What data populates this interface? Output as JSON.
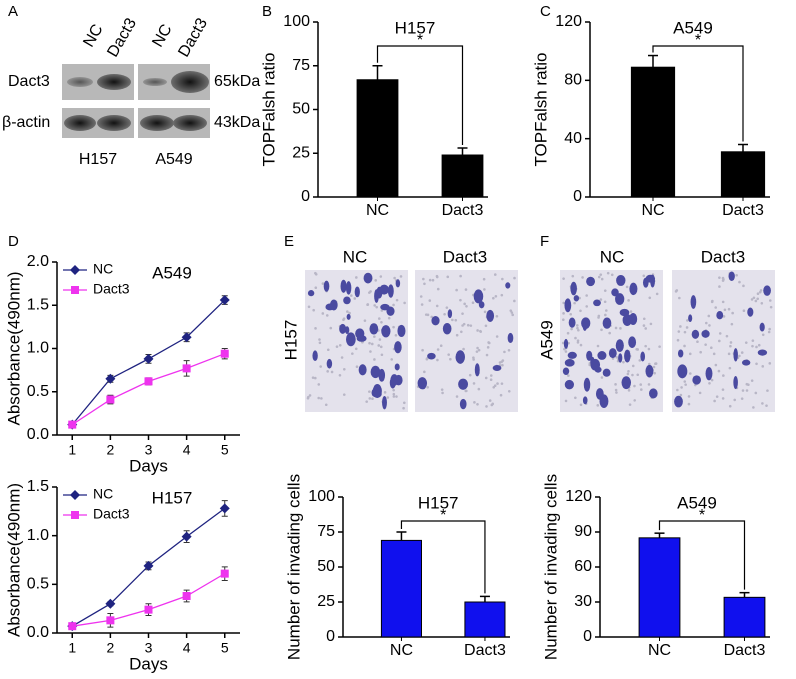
{
  "blot": {
    "panel": "A",
    "lanes": [
      "NC",
      "Dact3",
      "NC",
      "Dact3"
    ],
    "rows": [
      "Dact3",
      "β-actin"
    ],
    "sizes": [
      "65kDa",
      "43kDa"
    ],
    "groups": [
      "H157",
      "A549"
    ]
  },
  "images": [
    {
      "panel": "E",
      "columns": [
        "NC",
        "Dact3"
      ],
      "row": "H157"
    },
    {
      "panel": "F",
      "columns": [
        "NC",
        "Dact3"
      ],
      "row": "A549"
    }
  ],
  "chart_data": [
    {
      "type": "bar",
      "panel": "B",
      "title": "H157",
      "annotation": "*",
      "ylabel": "TOPFalsh ratio",
      "categories": [
        "NC",
        "Dact3"
      ],
      "values": [
        67,
        24
      ],
      "errors": [
        8,
        4
      ],
      "color": "#000000",
      "ylim": [
        0,
        100
      ],
      "yticks": [
        0,
        25,
        50,
        75,
        100
      ]
    },
    {
      "type": "bar",
      "panel": "C",
      "title": "A549",
      "annotation": "*",
      "ylabel": "TOPFalsh ratio",
      "categories": [
        "NC",
        "Dact3"
      ],
      "values": [
        89,
        31
      ],
      "errors": [
        8,
        5
      ],
      "color": "#000000",
      "ylim": [
        0,
        120
      ],
      "yticks": [
        0,
        40,
        80,
        120
      ]
    },
    {
      "type": "line",
      "panel": "D",
      "title": "A549",
      "ylabel": "Absorbance(490nm)",
      "xlabel": "Days",
      "legend": "upper left",
      "x": [
        1,
        2,
        3,
        4,
        5
      ],
      "series": [
        {
          "name": "NC",
          "color": "#1f2380",
          "marker": "diamond",
          "values": [
            0.12,
            0.65,
            0.88,
            1.13,
            1.56
          ],
          "errors": [
            0.02,
            0.04,
            0.05,
            0.05,
            0.05
          ]
        },
        {
          "name": "Dact3",
          "color": "#ee33ee",
          "marker": "square",
          "values": [
            0.12,
            0.41,
            0.62,
            0.77,
            0.94
          ],
          "errors": [
            0.02,
            0.05,
            0.04,
            0.09,
            0.06
          ]
        }
      ],
      "xlim": [
        0.6,
        5.4
      ],
      "xticks": [
        1,
        2,
        3,
        4,
        5
      ],
      "ylim": [
        0,
        2.0
      ],
      "yticks": [
        {
          "value": 0,
          "label": "0.0"
        },
        0.5,
        {
          "value": 1,
          "label": "1.0"
        },
        1.5,
        {
          "value": 2,
          "label": "2.0"
        }
      ]
    },
    {
      "type": "line",
      "title": "H157",
      "ylabel": "Absorbance(490nm)",
      "xlabel": "Days",
      "legend": "upper left",
      "x": [
        1,
        2,
        3,
        4,
        5
      ],
      "series": [
        {
          "name": "NC",
          "color": "#1f2380",
          "marker": "diamond",
          "values": [
            0.07,
            0.3,
            0.69,
            0.99,
            1.28
          ],
          "errors": [
            0.02,
            0.02,
            0.04,
            0.06,
            0.08
          ]
        },
        {
          "name": "Dact3",
          "color": "#ee33ee",
          "marker": "square",
          "values": [
            0.07,
            0.13,
            0.24,
            0.38,
            0.61
          ],
          "errors": [
            0.02,
            0.07,
            0.06,
            0.06,
            0.07
          ]
        }
      ],
      "xlim": [
        0.6,
        5.4
      ],
      "xticks": [
        1,
        2,
        3,
        4,
        5
      ],
      "ylim": [
        0,
        1.5
      ],
      "yticks": [
        {
          "value": 0,
          "label": "0.0"
        },
        0.5,
        {
          "value": 1,
          "label": "1.0"
        },
        1.5
      ]
    },
    {
      "type": "bar",
      "title": "H157",
      "annotation": "*",
      "ylabel": "Number of invading cells",
      "categories": [
        "NC",
        "Dact3"
      ],
      "values": [
        69,
        25
      ],
      "errors": [
        6,
        4
      ],
      "color": "#1010ee",
      "ylim": [
        0,
        100
      ],
      "yticks": [
        0,
        25,
        50,
        75,
        100
      ]
    },
    {
      "type": "bar",
      "title": "A549",
      "annotation": "*",
      "ylabel": "Number of invading cells",
      "categories": [
        "NC",
        "Dact3"
      ],
      "values": [
        85,
        34
      ],
      "errors": [
        4,
        4
      ],
      "color": "#1010ee",
      "ylim": [
        0,
        120
      ],
      "yticks": [
        0,
        30,
        60,
        90,
        120
      ]
    }
  ]
}
